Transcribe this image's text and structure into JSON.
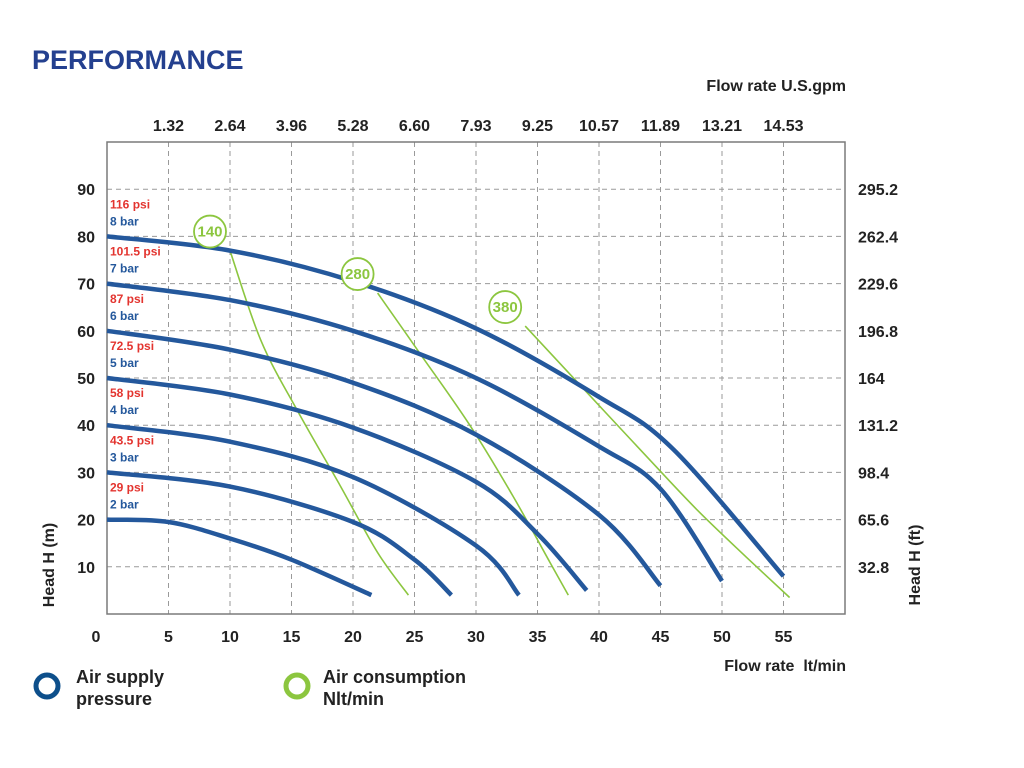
{
  "chart_data": {
    "type": "line",
    "title": "PERFORMANCE",
    "xlabel_bottom": "Flow rate  lt/min",
    "xlabel_top": "Flow rate U.S.gpm",
    "ylabel_left": "Head H (m)",
    "ylabel_right": "Head H (ft)",
    "xlim": [
      0,
      60
    ],
    "ylim": [
      0,
      100
    ],
    "grid": true,
    "x_ticks": [
      "0",
      "5",
      "10",
      "15",
      "20",
      "25",
      "30",
      "35",
      "40",
      "45",
      "50",
      "55"
    ],
    "x_tick_values": [
      0,
      5,
      10,
      15,
      20,
      25,
      30,
      35,
      40,
      45,
      50,
      55
    ],
    "top_ticks": [
      "1.32",
      "2.64",
      "3.96",
      "5.28",
      "6.60",
      "7.93",
      "9.25",
      "10.57",
      "11.89",
      "13.21",
      "14.53"
    ],
    "top_tick_positions": [
      5,
      10,
      15,
      20,
      25,
      30,
      35,
      40,
      45,
      50,
      55
    ],
    "y_ticks": [
      "10",
      "20",
      "30",
      "40",
      "50",
      "60",
      "70",
      "80",
      "90"
    ],
    "y_tick_values": [
      10,
      20,
      30,
      40,
      50,
      60,
      70,
      80,
      90
    ],
    "right_ticks": [
      "32.8",
      "65.6",
      "98.4",
      "131.2",
      "164",
      "196.8",
      "229.6",
      "262.4",
      "295.2"
    ],
    "series": [
      {
        "name": "8 bar",
        "psi": "116 psi",
        "color": "#24589c",
        "x": [
          0,
          10,
          20,
          30,
          40,
          46,
          55
        ],
        "y": [
          80,
          77,
          70.5,
          60.5,
          46,
          35,
          8
        ]
      },
      {
        "name": "7 bar",
        "psi": "101.5 psi",
        "color": "#24589c",
        "x": [
          0,
          10,
          20,
          30,
          40,
          45,
          50
        ],
        "y": [
          70,
          66.5,
          60,
          50,
          35.5,
          26.5,
          7
        ]
      },
      {
        "name": "6 bar",
        "psi": "87 psi",
        "color": "#24589c",
        "x": [
          0,
          10,
          20,
          30,
          40,
          45
        ],
        "y": [
          60,
          56,
          49,
          38,
          21,
          6
        ]
      },
      {
        "name": "5 bar",
        "psi": "72.5 psi",
        "color": "#24589c",
        "x": [
          0,
          10,
          20,
          30,
          35,
          39
        ],
        "y": [
          50,
          46.5,
          39.5,
          28,
          17,
          5
        ]
      },
      {
        "name": "4 bar",
        "psi": "58 psi",
        "color": "#24589c",
        "x": [
          0,
          10,
          20,
          30,
          33.5
        ],
        "y": [
          40,
          36.5,
          29,
          14.5,
          4
        ]
      },
      {
        "name": "3 bar",
        "psi": "43.5 psi",
        "color": "#24589c",
        "x": [
          0,
          10,
          20,
          25,
          28
        ],
        "y": [
          30,
          27,
          19.5,
          11.5,
          4
        ]
      },
      {
        "name": "2 bar",
        "psi": "29 psi",
        "color": "#24589c",
        "x": [
          0,
          5,
          10,
          15,
          21.5
        ],
        "y": [
          20,
          19.5,
          16,
          11.5,
          4
        ]
      }
    ],
    "air_consumption": [
      {
        "label": "140",
        "color": "#8cc63f",
        "x": [
          10,
          12.5,
          15.5,
          19,
          22,
          24.5
        ],
        "y": [
          77,
          58,
          43,
          27,
          13,
          4
        ]
      },
      {
        "label": "280",
        "color": "#8cc63f",
        "x": [
          22,
          25.5,
          29.5,
          33,
          36,
          37.5
        ],
        "y": [
          68,
          55,
          40,
          25,
          11,
          4
        ]
      },
      {
        "label": "380",
        "color": "#8cc63f",
        "x": [
          34,
          39,
          44,
          48,
          52,
          55.5
        ],
        "y": [
          61,
          47,
          33,
          22,
          12,
          3.5
        ]
      }
    ],
    "legend": [
      {
        "label_line1": "Air supply",
        "label_line2": "pressure",
        "color": "#0d4f8b"
      },
      {
        "label_line1": "Air consumption",
        "label_line2": "Nlt/min",
        "color": "#8cc63f"
      }
    ]
  }
}
